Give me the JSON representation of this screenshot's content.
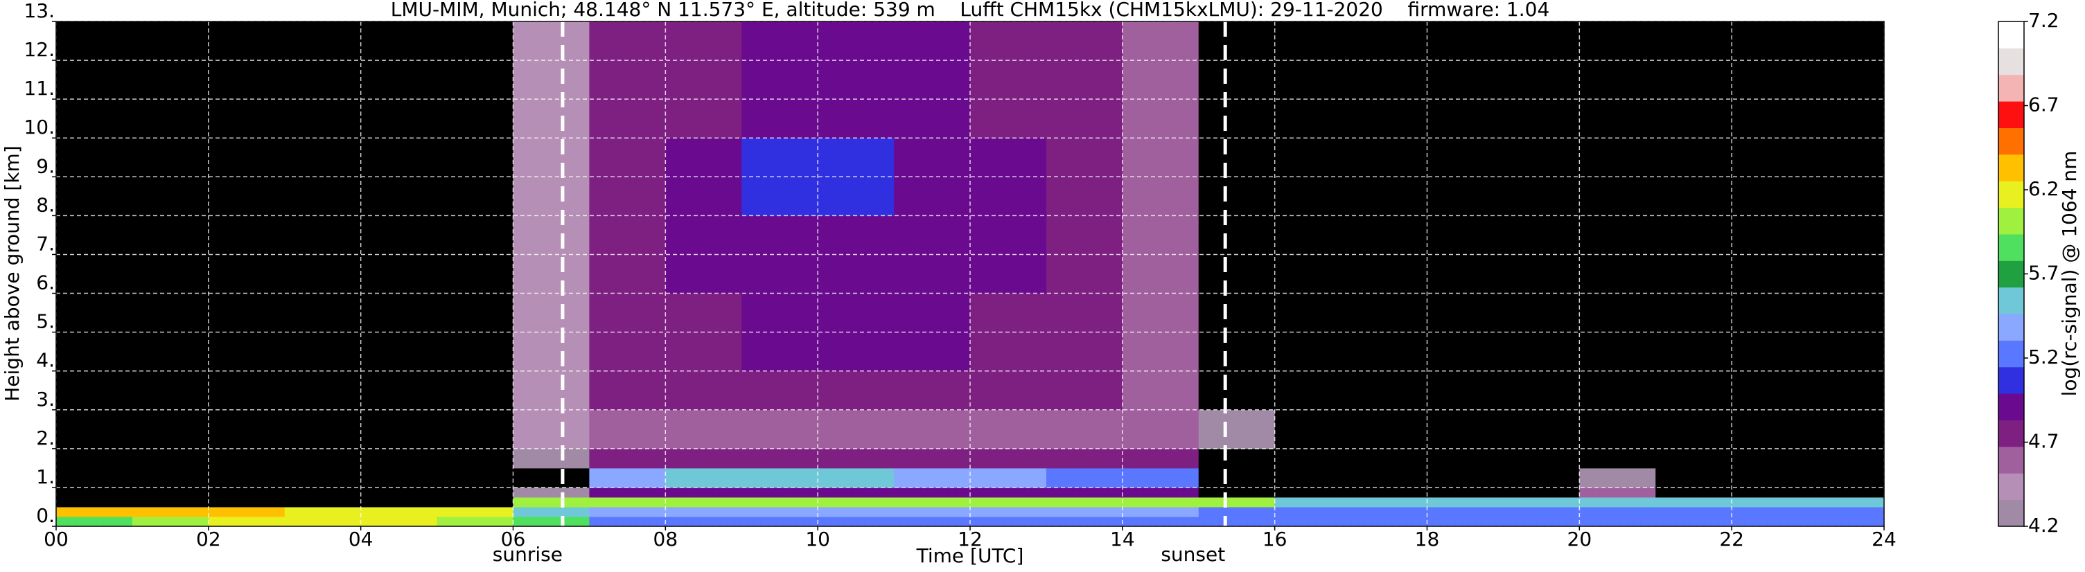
{
  "chart_data": {
    "type": "heatmap",
    "title": "LMU-MIM, Munich; 48.148° N 11.573° E, altitude: 539 m    Lufft CHM15kx (CHM15kxLMU): 29-11-2020    firmware: 1.04",
    "xlabel": "Time [UTC]",
    "ylabel": "Height above ground [km]",
    "colorbar_label": "log(rc-signal) @ 1064 nm",
    "x_edges": [
      0,
      1,
      2,
      3,
      4,
      5,
      6,
      7,
      8,
      9,
      10,
      11,
      12,
      13,
      14,
      15,
      16,
      17,
      18,
      19,
      20,
      21,
      22,
      23,
      24
    ],
    "y_edges": [
      0,
      0.25,
      0.5,
      0.75,
      1,
      1.5,
      2,
      3,
      4,
      6,
      8,
      10,
      13
    ],
    "values": [
      [
        5.9,
        6.0,
        6.1,
        6.1,
        6.1,
        6.0,
        5.8,
        5.3,
        5.3,
        5.3,
        5.3,
        5.3,
        5.3,
        5.3,
        5.3,
        5.2,
        5.2,
        5.2,
        5.2,
        5.2,
        5.3,
        5.3,
        5.3,
        5.3
      ],
      [
        6.4,
        6.4,
        6.3,
        6.2,
        6.2,
        6.2,
        5.6,
        5.4,
        5.4,
        5.4,
        5.4,
        5.4,
        5.4,
        5.4,
        5.4,
        5.2,
        5.2,
        5.2,
        5.2,
        5.2,
        5.2,
        5.2,
        5.2,
        5.2
      ],
      [
        4.1,
        4.1,
        4.1,
        4.1,
        4.1,
        4.1,
        6.0,
        6.0,
        6.0,
        6.0,
        6.0,
        6.0,
        6.0,
        6.0,
        6.0,
        6.0,
        5.6,
        5.6,
        5.6,
        5.6,
        5.6,
        5.6,
        5.6,
        5.6
      ],
      [
        4.1,
        4.1,
        4.1,
        4.1,
        4.1,
        4.1,
        4.3,
        4.9,
        4.9,
        4.9,
        4.9,
        4.9,
        4.9,
        4.9,
        4.9,
        4.1,
        4.1,
        4.1,
        4.1,
        4.1,
        4.6,
        4.1,
        4.1,
        4.1
      ],
      [
        4.1,
        4.1,
        4.1,
        4.1,
        4.1,
        4.1,
        4.1,
        5.4,
        5.5,
        5.6,
        5.5,
        5.4,
        5.4,
        5.3,
        5.2,
        4.1,
        4.1,
        4.1,
        4.1,
        4.1,
        4.3,
        4.1,
        4.1,
        4.1
      ],
      [
        4.1,
        4.1,
        4.1,
        4.1,
        4.1,
        4.1,
        4.3,
        4.8,
        4.8,
        4.8,
        4.8,
        4.8,
        4.8,
        4.8,
        4.8,
        4.1,
        4.1,
        4.1,
        4.1,
        4.1,
        4.1,
        4.1,
        4.1,
        4.1
      ],
      [
        4.1,
        4.1,
        4.1,
        4.1,
        4.1,
        4.1,
        4.4,
        4.6,
        4.6,
        4.6,
        4.6,
        4.6,
        4.6,
        4.6,
        4.6,
        4.2,
        4.1,
        4.1,
        4.1,
        4.1,
        4.1,
        4.1,
        4.1,
        4.1
      ],
      [
        4.1,
        4.1,
        4.1,
        4.1,
        4.1,
        4.1,
        4.4,
        4.7,
        4.8,
        4.8,
        4.8,
        4.8,
        4.8,
        4.7,
        4.6,
        4.1,
        4.1,
        4.1,
        4.1,
        4.1,
        4.1,
        4.1,
        4.1,
        4.1
      ],
      [
        4.1,
        4.1,
        4.1,
        4.1,
        4.1,
        4.1,
        4.4,
        4.7,
        4.8,
        4.9,
        4.9,
        4.9,
        4.8,
        4.7,
        4.6,
        4.1,
        4.1,
        4.1,
        4.1,
        4.1,
        4.1,
        4.1,
        4.1,
        4.1
      ],
      [
        4.1,
        4.1,
        4.1,
        4.1,
        4.1,
        4.1,
        4.4,
        4.8,
        4.9,
        4.9,
        4.9,
        4.9,
        4.9,
        4.8,
        4.6,
        4.1,
        4.1,
        4.1,
        4.1,
        4.1,
        4.1,
        4.1,
        4.1,
        4.1
      ],
      [
        4.1,
        4.1,
        4.1,
        4.1,
        4.1,
        4.1,
        4.4,
        4.8,
        4.9,
        5.0,
        5.0,
        4.9,
        4.9,
        4.8,
        4.6,
        4.1,
        4.1,
        4.1,
        4.1,
        4.1,
        4.1,
        4.1,
        4.1,
        4.1
      ],
      [
        4.1,
        4.1,
        4.1,
        4.1,
        4.1,
        4.1,
        4.4,
        4.7,
        4.8,
        4.9,
        4.9,
        4.9,
        4.8,
        4.7,
        4.6,
        4.1,
        4.1,
        4.1,
        4.1,
        4.1,
        4.1,
        4.1,
        4.1,
        4.1
      ]
    ],
    "xlim": [
      0,
      24
    ],
    "ylim": [
      0,
      13
    ],
    "xticks": [
      {
        "value": 0,
        "label": "00"
      },
      {
        "value": 2,
        "label": "02"
      },
      {
        "value": 4,
        "label": "04"
      },
      {
        "value": 6,
        "label": "06"
      },
      {
        "value": 8,
        "label": "08"
      },
      {
        "value": 10,
        "label": "10"
      },
      {
        "value": 12,
        "label": "12"
      },
      {
        "value": 14,
        "label": "14"
      },
      {
        "value": 16,
        "label": "16"
      },
      {
        "value": 18,
        "label": "18"
      },
      {
        "value": 20,
        "label": "20"
      },
      {
        "value": 22,
        "label": "22"
      },
      {
        "value": 24,
        "label": "24"
      }
    ],
    "yticks": [
      {
        "value": 0,
        "label": "0."
      },
      {
        "value": 1,
        "label": "1."
      },
      {
        "value": 2,
        "label": "2."
      },
      {
        "value": 3,
        "label": "3."
      },
      {
        "value": 4,
        "label": "4."
      },
      {
        "value": 5,
        "label": "5."
      },
      {
        "value": 6,
        "label": "6."
      },
      {
        "value": 7,
        "label": "7."
      },
      {
        "value": 8,
        "label": "8."
      },
      {
        "value": 9,
        "label": "9."
      },
      {
        "value": 10,
        "label": "10."
      },
      {
        "value": 11,
        "label": "11."
      },
      {
        "value": 12,
        "label": "12."
      },
      {
        "value": 13,
        "label": "13."
      }
    ],
    "zlim": [
      4.2,
      7.2
    ],
    "zticks": [
      4.2,
      4.7,
      5.2,
      5.7,
      6.2,
      6.7,
      7.2
    ],
    "colorscale": [
      "#a08aa6",
      "#b58fb5",
      "#a0609e",
      "#7e1f82",
      "#6a0a8f",
      "#3030e0",
      "#5a78ff",
      "#8aa8ff",
      "#6fc8d8",
      "#20a040",
      "#50e060",
      "#a0f040",
      "#e8f020",
      "#ffc000",
      "#ff7000",
      "#ff1010",
      "#f4b4b4",
      "#e6e0e0",
      "#ffffff"
    ],
    "under_color": "#000000",
    "grid": true,
    "annotations": [
      {
        "label": "sunrise",
        "x": 6.65
      },
      {
        "label": "sunset",
        "x": 15.35
      }
    ]
  }
}
